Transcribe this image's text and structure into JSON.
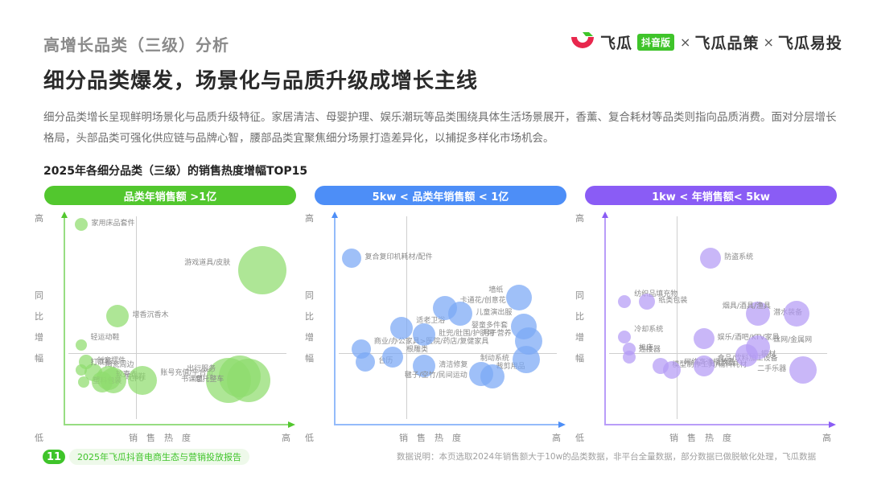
{
  "header": {
    "section_title": "高增长品类（三级）分析",
    "main_title": "细分品类爆发，场景化与品质升级成增长主线",
    "logo": {
      "brand1": "飞瓜",
      "badge": "抖音版",
      "sep1": "×",
      "brand2": "飞瓜品策",
      "sep2": "×",
      "brand3": "飞瓜易投",
      "colors": {
        "red": "#e8274d",
        "green": "#3fc42a"
      }
    }
  },
  "description": "细分品类增长呈现鲜明场景化与品质升级特征。家居清洁、母婴护理、娱乐潮玩等品类围绕具体生活场景展开，香薰、复合耗材等品类则指向品质消费。面对分层增长格局，头部品类可强化供应链与品牌心智，腰部品类宜聚焦细分场景打造差异化，以捕捉多样化市场机会。",
  "chart_section_title": "2025年各细分品类（三级）的销售热度增幅TOP15",
  "axes": {
    "y_high": "高",
    "y_label_chars": [
      "同",
      "比",
      "增",
      "幅"
    ],
    "x_low": "低",
    "x_label": "销售热度",
    "x_high": "高"
  },
  "chart_data": [
    {
      "type": "scatter",
      "title": "品类年销售额 >1亿",
      "color": "#52c72e",
      "bubble_color": "#8fdc6e",
      "xlabel": "销售热度",
      "ylabel": "同比增幅",
      "note": "positions are relative (0-100) estimates; size = bubble diameter px",
      "points": [
        {
          "name": "家用床品套件",
          "x": 8,
          "y": 96,
          "size": 16
        },
        {
          "name": "游戏道具/皮肤",
          "x": 88,
          "y": 74,
          "size": 60
        },
        {
          "name": "增香沉香木",
          "x": 24,
          "y": 52,
          "size": 28
        },
        {
          "name": "轻运动鞋",
          "x": 8,
          "y": 38,
          "size": 14
        },
        {
          "name": "创意摆件",
          "x": 10,
          "y": 30,
          "size": 18
        },
        {
          "name": "陶瓷周边",
          "x": 13,
          "y": 25,
          "size": 22
        },
        {
          "name": "德训鞋",
          "x": 20,
          "y": 22,
          "size": 30
        },
        {
          "name": "打底衫",
          "x": 8,
          "y": 26,
          "size": 14
        },
        {
          "name": "塑料包装",
          "x": 9,
          "y": 20,
          "size": 14
        },
        {
          "name": "软壳衣",
          "x": 17,
          "y": 20,
          "size": 26
        },
        {
          "name": "CPU",
          "x": 22,
          "y": 21,
          "size": 32
        },
        {
          "name": "账号充值/平台币",
          "x": 35,
          "y": 21,
          "size": 36
        },
        {
          "name": "书课包",
          "x": 73,
          "y": 21,
          "size": 56
        },
        {
          "name": "出行服务",
          "x": 78,
          "y": 23,
          "size": 52
        },
        {
          "name": "摩托整车",
          "x": 82,
          "y": 21,
          "size": 54
        }
      ]
    },
    {
      "type": "scatter",
      "title": "5kw < 品类年销售额 < 1亿",
      "color": "#4d8ef7",
      "bubble_color": "#7aa8f5",
      "xlabel": "销售热度",
      "ylabel": "同比增幅",
      "points": [
        {
          "name": "复合复印机耗材/配件",
          "x": 8,
          "y": 80,
          "size": 24
        },
        {
          "name": "商业/办公家具>医院/药店/复健家具",
          "x": 12,
          "y": 36,
          "size": 24
        },
        {
          "name": "台历",
          "x": 14,
          "y": 30,
          "size": 24
        },
        {
          "name": "适老卫浴",
          "x": 30,
          "y": 46,
          "size": 28
        },
        {
          "name": "肚兜/肚围/护脐带",
          "x": 40,
          "y": 43,
          "size": 28
        },
        {
          "name": "根雕类",
          "x": 26,
          "y": 32,
          "size": 26
        },
        {
          "name": "清洁修复",
          "x": 40,
          "y": 28,
          "size": 28
        },
        {
          "name": "卡通花/创意花",
          "x": 49,
          "y": 56,
          "size": 30
        },
        {
          "name": "儿童演出服",
          "x": 56,
          "y": 53,
          "size": 30
        },
        {
          "name": "裁剪用品",
          "x": 65,
          "y": 24,
          "size": 30
        },
        {
          "name": "毽子/空竹/民间运动",
          "x": 70,
          "y": 23,
          "size": 30
        },
        {
          "name": "墙纸",
          "x": 82,
          "y": 61,
          "size": 32
        },
        {
          "name": "婴童多件套",
          "x": 84,
          "y": 47,
          "size": 32
        },
        {
          "name": "月子营养",
          "x": 86,
          "y": 40,
          "size": 34
        },
        {
          "name": "制动系统",
          "x": 85,
          "y": 31,
          "size": 34
        }
      ]
    },
    {
      "type": "scatter",
      "title": "1kw < 年销售额< 5kw",
      "color": "#8a5cf5",
      "bubble_color": "#b49bf5",
      "xlabel": "销售热度",
      "ylabel": "同比增幅",
      "points": [
        {
          "name": "防盗系统",
          "x": 47,
          "y": 80,
          "size": 26
        },
        {
          "name": "纺织品填充物",
          "x": 9,
          "y": 59,
          "size": 16
        },
        {
          "name": "纸类包装",
          "x": 19,
          "y": 59,
          "size": 20
        },
        {
          "name": "冷却系统",
          "x": 9,
          "y": 42,
          "size": 16
        },
        {
          "name": "机床",
          "x": 11,
          "y": 36,
          "size": 16
        },
        {
          "name": "连接器",
          "x": 11,
          "y": 32,
          "size": 16
        },
        {
          "name": "模型制作工具/辅料耗材",
          "x": 25,
          "y": 28,
          "size": 20
        },
        {
          "name": "网络高清播放器",
          "x": 30,
          "y": 26,
          "size": 22
        },
        {
          "name": "娱乐/酒吧/KTV家具",
          "x": 44,
          "y": 41,
          "size": 26
        },
        {
          "name": "食品/饮料加工设备",
          "x": 44,
          "y": 28,
          "size": 26
        },
        {
          "name": "潜水装备",
          "x": 68,
          "y": 53,
          "size": 30
        },
        {
          "name": "烟具/酒具/渔具",
          "x": 85,
          "y": 53,
          "size": 32
        },
        {
          "name": "铜材",
          "x": 63,
          "y": 33,
          "size": 28
        },
        {
          "name": "丝网/金属网",
          "x": 68,
          "y": 37,
          "size": 30
        },
        {
          "name": "二手乐器",
          "x": 88,
          "y": 26,
          "size": 34
        }
      ]
    }
  ],
  "footer": {
    "page_number": "11",
    "report_title": "2025年飞瓜抖音电商生态与营销投放报告",
    "data_note": "数据说明：本页选取2024年销售额大于10w的品类数据，非平台全量数据，部分数据已做脱敏化处理，飞瓜数据"
  }
}
